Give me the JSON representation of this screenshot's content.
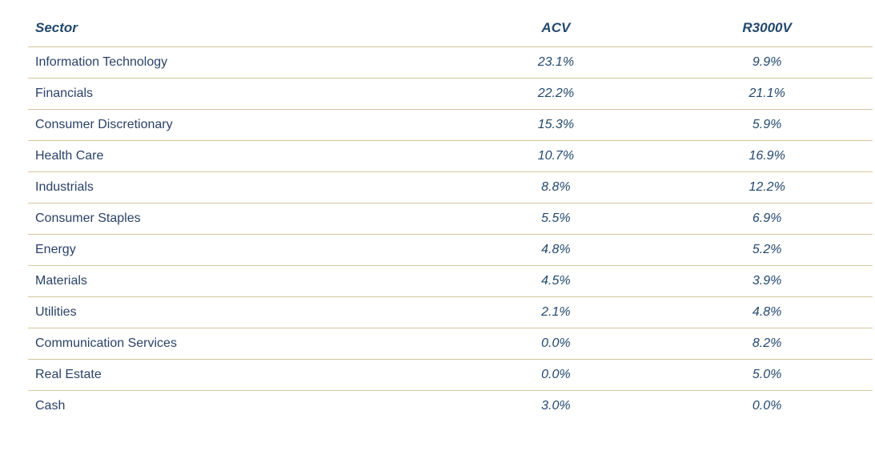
{
  "colors": {
    "text_navy": "#2b4268",
    "header_navy": "#23496e",
    "divider_tan": "#d3c79e",
    "background": "#ffffff"
  },
  "table": {
    "columns": [
      {
        "label": "Sector"
      },
      {
        "label": "ACV"
      },
      {
        "label": "R3000V"
      }
    ],
    "rows": [
      {
        "sector": "Information Technology",
        "acv": "23.1%",
        "r3000v": "9.9%"
      },
      {
        "sector": "Financials",
        "acv": "22.2%",
        "r3000v": "21.1%"
      },
      {
        "sector": "Consumer Discretionary",
        "acv": "15.3%",
        "r3000v": "5.9%"
      },
      {
        "sector": "Health Care",
        "acv": "10.7%",
        "r3000v": "16.9%"
      },
      {
        "sector": "Industrials",
        "acv": "8.8%",
        "r3000v": "12.2%"
      },
      {
        "sector": "Consumer Staples",
        "acv": "5.5%",
        "r3000v": "6.9%"
      },
      {
        "sector": "Energy",
        "acv": "4.8%",
        "r3000v": "5.2%"
      },
      {
        "sector": "Materials",
        "acv": "4.5%",
        "r3000v": "3.9%"
      },
      {
        "sector": "Utilities",
        "acv": "2.1%",
        "r3000v": "4.8%"
      },
      {
        "sector": "Communication Services",
        "acv": "0.0%",
        "r3000v": "8.2%"
      },
      {
        "sector": "Real Estate",
        "acv": "0.0%",
        "r3000v": "5.0%"
      },
      {
        "sector": "Cash",
        "acv": "3.0%",
        "r3000v": "0.0%"
      }
    ]
  },
  "chart_data": {
    "type": "table",
    "title": "",
    "categories": [
      "Information Technology",
      "Financials",
      "Consumer Discretionary",
      "Health Care",
      "Industrials",
      "Consumer Staples",
      "Energy",
      "Materials",
      "Utilities",
      "Communication Services",
      "Real Estate",
      "Cash"
    ],
    "series": [
      {
        "name": "ACV",
        "values": [
          23.1,
          22.2,
          15.3,
          10.7,
          8.8,
          5.5,
          4.8,
          4.5,
          2.1,
          0.0,
          0.0,
          3.0
        ]
      },
      {
        "name": "R3000V",
        "values": [
          9.9,
          21.1,
          5.9,
          16.9,
          12.2,
          6.9,
          5.2,
          3.9,
          4.8,
          8.2,
          5.0,
          0.0
        ]
      }
    ],
    "value_unit": "%"
  }
}
